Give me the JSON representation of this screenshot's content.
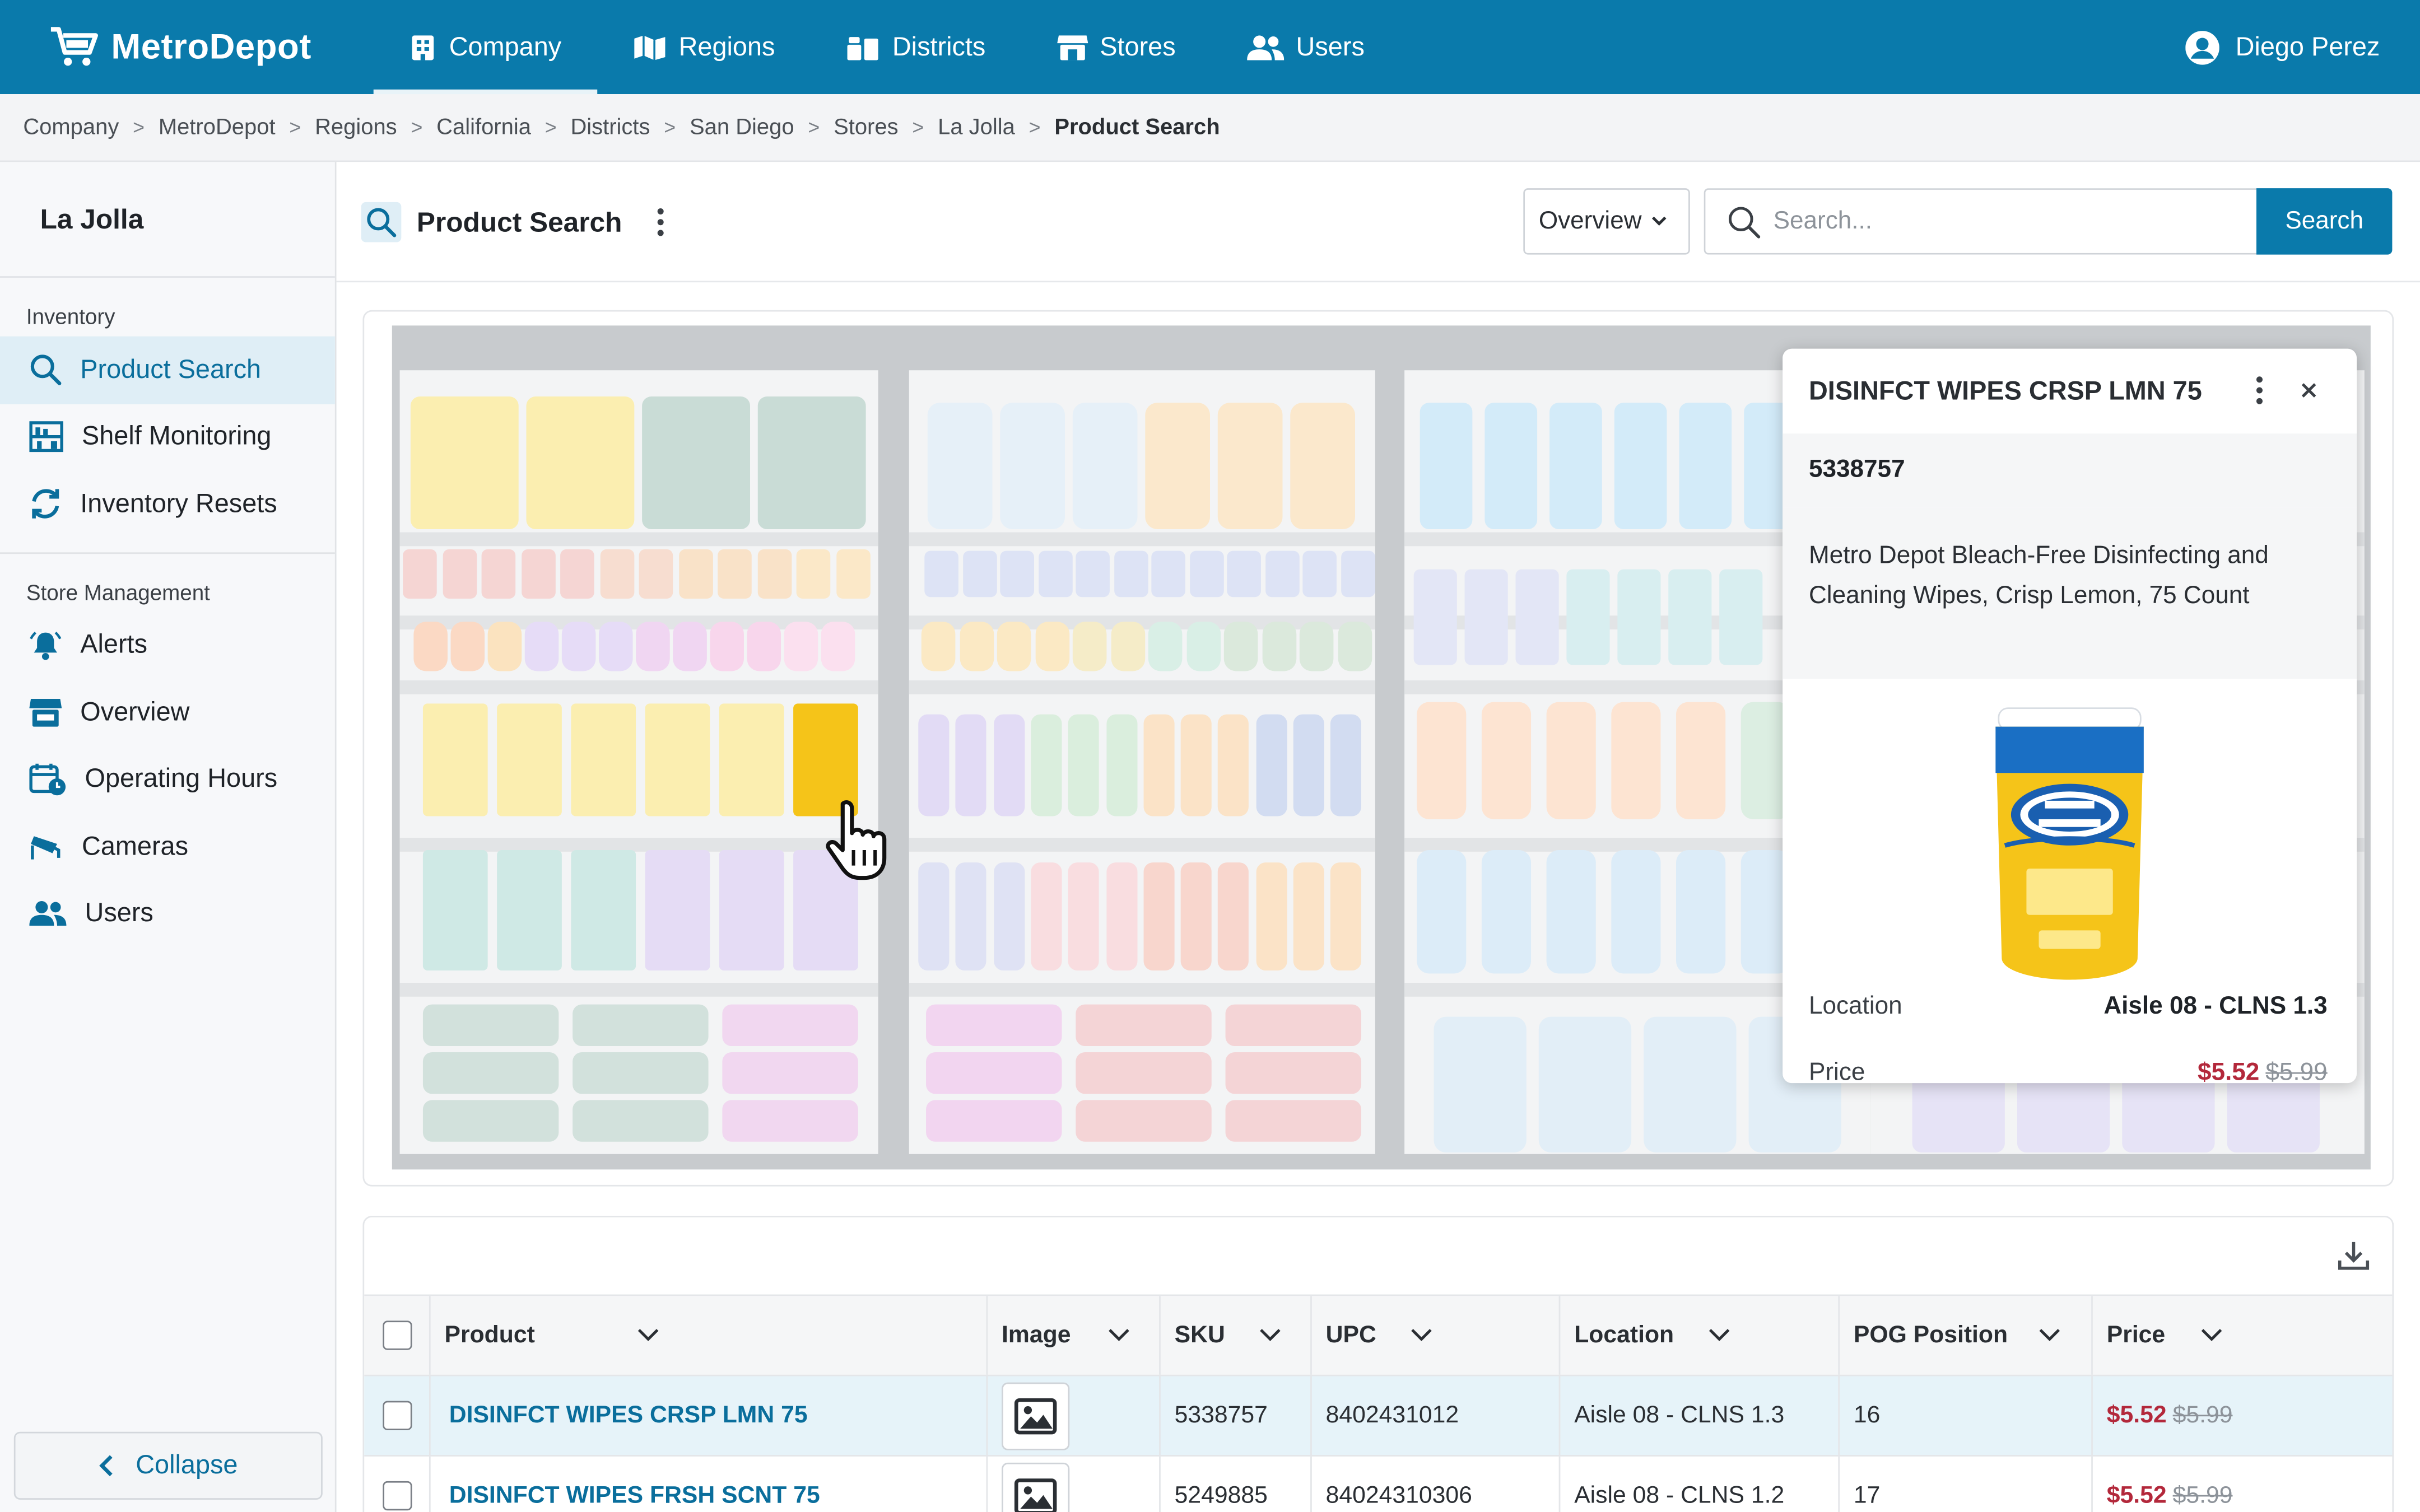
{
  "app": {
    "name": "MetroDepot"
  },
  "nav": {
    "tabs": [
      {
        "label": "Company",
        "icon": "building-icon",
        "active": true
      },
      {
        "label": "Regions",
        "icon": "map-icon"
      },
      {
        "label": "Districts",
        "icon": "districts-icon"
      },
      {
        "label": "Stores",
        "icon": "store-icon"
      },
      {
        "label": "Users",
        "icon": "users-icon"
      }
    ],
    "user": "Diego Perez"
  },
  "breadcrumb": [
    "Company",
    "MetroDepot",
    "Regions",
    "California",
    "Districts",
    "San Diego",
    "Stores",
    "La Jolla",
    "Product Search"
  ],
  "sidebar": {
    "store": "La Jolla",
    "sections": [
      {
        "title": "Inventory",
        "items": [
          "Product Search",
          "Shelf Monitoring",
          "Inventory Resets"
        ]
      },
      {
        "title": "Store Management",
        "items": [
          "Alerts",
          "Overview",
          "Operating Hours",
          "Cameras",
          "Users"
        ]
      }
    ],
    "collapse": "Collapse"
  },
  "header": {
    "title": "Product Search",
    "view": "Overview",
    "search_placeholder": "Search...",
    "search_button": "Search"
  },
  "popup": {
    "title": "DISINFCT WIPES CRSP LMN 75",
    "sku": "5338757",
    "description": "Metro Depot Bleach-Free Disinfecting and Cleaning Wipes, Crisp Lemon, 75 Count",
    "location_label": "Location",
    "location": "Aisle 08 - CLNS 1.3",
    "price_label": "Price",
    "price": "$5.52",
    "original_price": "$5.99"
  },
  "table": {
    "columns": [
      "Product",
      "Image",
      "SKU",
      "UPC",
      "Location",
      "POG Position",
      "Price"
    ],
    "rows": [
      {
        "product": "DISINFCT WIPES CRSP LMN 75",
        "sku": "5338757",
        "upc": "8402431012",
        "location": "Aisle 08 - CLNS 1.3",
        "pog": "16",
        "price": "$5.52",
        "original": "$5.99",
        "selected": true
      },
      {
        "product": "DISINFCT WIPES FRSH SCNT 75",
        "sku": "5249885",
        "upc": "84024310306",
        "location": "Aisle 08 - CLNS 1.2",
        "pog": "17",
        "price": "$5.52",
        "original": "$5.99",
        "selected": false
      }
    ]
  },
  "colors": {
    "brand": "#0a7aab",
    "sale": "#b3283b",
    "selected_row": "#e6f3f9"
  }
}
